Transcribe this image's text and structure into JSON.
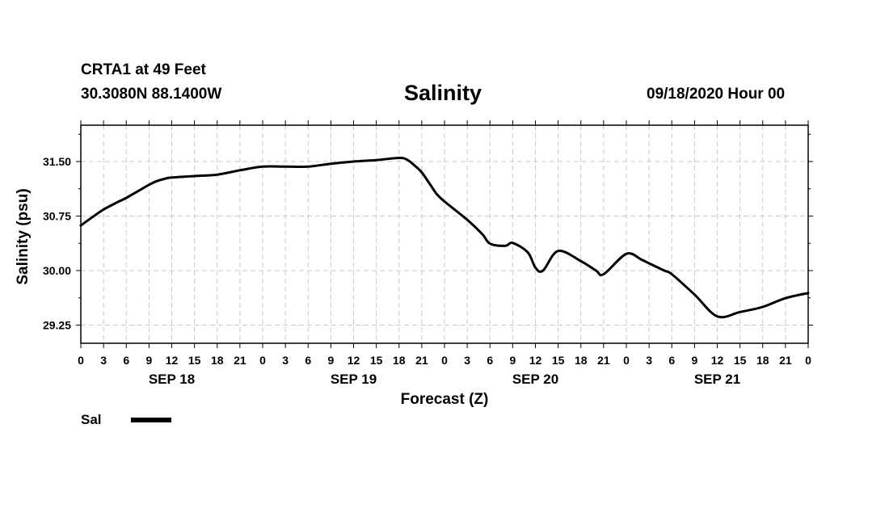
{
  "header": {
    "station": "CRTA1 at 49 Feet",
    "coordinates": "30.3080N 88.1400W",
    "title": "Salinity",
    "datetime": "09/18/2020 Hour 00"
  },
  "chart_data": {
    "type": "line",
    "title": "Salinity",
    "xlabel": "Forecast (Z)",
    "ylabel": "Salinity (psu)",
    "ylim": [
      29.0,
      32.0
    ],
    "xlim": [
      0,
      96
    ],
    "yticks": [
      29.25,
      30.0,
      30.75,
      31.5
    ],
    "ytick_labels": [
      "29.25",
      "30.00",
      "30.75",
      "31.50"
    ],
    "xtick_hours": [
      0,
      3,
      6,
      9,
      12,
      15,
      18,
      21,
      24,
      27,
      30,
      33,
      36,
      39,
      42,
      45,
      48,
      51,
      54,
      57,
      60,
      63,
      66,
      69,
      72,
      75,
      78,
      81,
      84,
      87,
      90,
      93,
      96
    ],
    "xtick_labels": [
      "0",
      "3",
      "6",
      "9",
      "12",
      "15",
      "18",
      "21",
      "0",
      "3",
      "6",
      "9",
      "12",
      "15",
      "18",
      "21",
      "0",
      "3",
      "6",
      "9",
      "12",
      "15",
      "18",
      "21",
      "0",
      "3",
      "6",
      "9",
      "12",
      "15",
      "18",
      "21",
      "0"
    ],
    "day_labels": [
      {
        "hour": 12,
        "label": "SEP 18"
      },
      {
        "hour": 36,
        "label": "SEP 19"
      },
      {
        "hour": 60,
        "label": "SEP 20"
      },
      {
        "hour": 84,
        "label": "SEP 21"
      }
    ],
    "grid": true,
    "legend": "bottom-left",
    "series": [
      {
        "name": "Sal",
        "x": [
          0,
          2,
          3,
          5,
          6,
          8,
          9,
          10,
          11,
          12,
          15,
          18,
          21,
          24,
          27,
          30,
          33,
          36,
          39,
          40,
          42,
          43,
          44,
          45,
          46,
          47,
          48,
          51,
          53,
          54,
          56,
          57,
          59,
          60,
          61,
          63,
          66,
          68,
          69,
          72,
          74,
          75,
          77,
          78,
          81,
          84,
          87,
          90,
          93,
          96
        ],
        "y": [
          30.62,
          30.77,
          30.84,
          30.95,
          31.0,
          31.12,
          31.18,
          31.23,
          31.26,
          31.28,
          31.3,
          31.32,
          31.38,
          31.43,
          31.43,
          31.43,
          31.47,
          31.5,
          31.52,
          31.53,
          31.55,
          31.53,
          31.45,
          31.35,
          31.2,
          31.05,
          30.95,
          30.7,
          30.5,
          30.37,
          30.34,
          30.38,
          30.25,
          30.04,
          30.0,
          30.27,
          30.13,
          30.0,
          29.95,
          30.23,
          30.15,
          30.1,
          30.0,
          29.95,
          29.67,
          29.37,
          29.43,
          29.5,
          29.62,
          29.69
        ]
      }
    ]
  },
  "legend": {
    "label": "Sal",
    "color": "#000000"
  }
}
